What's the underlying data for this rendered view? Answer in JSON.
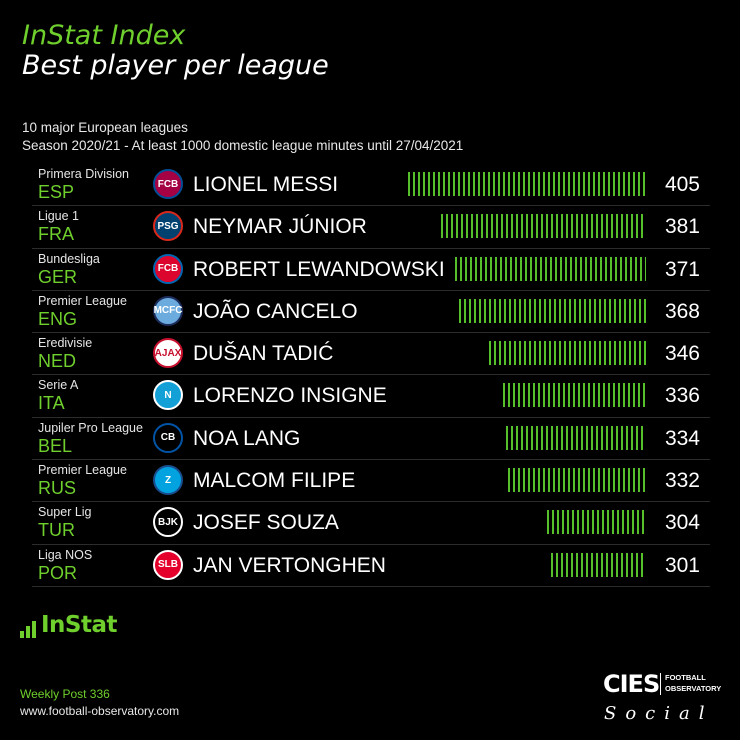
{
  "header": {
    "title": "InStat Index",
    "subtitle": "Best player per league",
    "description_line1": "10 major European leagues",
    "description_line2": "Season 2020/21 - At least 1000 domestic league minutes until 27/04/2021"
  },
  "colors": {
    "accent": "#6fcf2d",
    "bar": "#55c02a",
    "background": "#000000"
  },
  "chart_data": {
    "type": "bar",
    "orientation": "horizontal",
    "title": "InStat Index",
    "subtitle": "Best player per league",
    "categories": [
      "LIONEL MESSI",
      "NEYMAR JÚNIOR",
      "ROBERT LEWANDOWSKI",
      "JOÃO CANCELO",
      "DUŠAN TADIĆ",
      "LORENZO INSIGNE",
      "NOA LANG",
      "MALCOM FILIPE",
      "JOSEF SOUZA",
      "JAN VERTONGHEN"
    ],
    "values": [
      405,
      381,
      371,
      368,
      346,
      336,
      334,
      332,
      304,
      301
    ],
    "rows": [
      {
        "league": "Primera Division",
        "code": "ESP",
        "player": "LIONEL MESSI",
        "value": 405,
        "badge": "barcelona-crest-icon",
        "badge_label": "FCB",
        "badge_color": "#a50044",
        "badge_ring": "#004d98"
      },
      {
        "league": "Ligue 1",
        "code": "FRA",
        "player": "NEYMAR JÚNIOR",
        "value": 381,
        "badge": "psg-crest-icon",
        "badge_label": "PSG",
        "badge_color": "#004170",
        "badge_ring": "#da291c"
      },
      {
        "league": "Bundesliga",
        "code": "GER",
        "player": "ROBERT LEWANDOWSKI",
        "value": 371,
        "badge": "bayern-crest-icon",
        "badge_label": "FCB",
        "badge_color": "#dc052d",
        "badge_ring": "#0066b2"
      },
      {
        "league": "Premier League",
        "code": "ENG",
        "player": "JOÃO CANCELO",
        "value": 368,
        "badge": "man-city-crest-icon",
        "badge_label": "MCFC",
        "badge_color": "#6cabdd",
        "badge_ring": "#1c2c5b"
      },
      {
        "league": "Eredivisie",
        "code": "NED",
        "player": "DUŠAN TADIĆ",
        "value": 346,
        "badge": "ajax-crest-icon",
        "badge_label": "AJAX",
        "badge_color": "#ffffff",
        "badge_ring": "#c8102e"
      },
      {
        "league": "Serie A",
        "code": "ITA",
        "player": "LORENZO INSIGNE",
        "value": 336,
        "badge": "napoli-crest-icon",
        "badge_label": "N",
        "badge_color": "#12a0d7",
        "badge_ring": "#ffffff"
      },
      {
        "league": "Jupiler Pro League",
        "code": "BEL",
        "player": "NOA LANG",
        "value": 334,
        "badge": "club-brugge-crest-icon",
        "badge_label": "CB",
        "badge_color": "#000000",
        "badge_ring": "#0054a6"
      },
      {
        "league": "Premier League",
        "code": "RUS",
        "player": "MALCOM FILIPE",
        "value": 332,
        "badge": "zenit-crest-icon",
        "badge_label": "Z",
        "badge_color": "#00a3e0",
        "badge_ring": "#1a4b8c"
      },
      {
        "league": "Super Lig",
        "code": "TUR",
        "player": "JOSEF SOUZA",
        "value": 304,
        "badge": "besiktas-crest-icon",
        "badge_label": "BJK",
        "badge_color": "#000000",
        "badge_ring": "#ffffff"
      },
      {
        "league": "Liga NOS",
        "code": "POR",
        "player": "JAN VERTONGHEN",
        "value": 301,
        "badge": "benfica-crest-icon",
        "badge_label": "SLB",
        "badge_color": "#e4002b",
        "badge_ring": "#ffffff"
      }
    ],
    "xlim": [
      0,
      405
    ],
    "grid": false
  },
  "footer": {
    "logo_text": "InStat",
    "weekly": "Weekly Post 336",
    "website": "www.football-observatory.com",
    "cies": "CIES",
    "fo_line1": "FOOTBALL",
    "fo_line2": "OBSERVATORY",
    "social": "Social"
  }
}
